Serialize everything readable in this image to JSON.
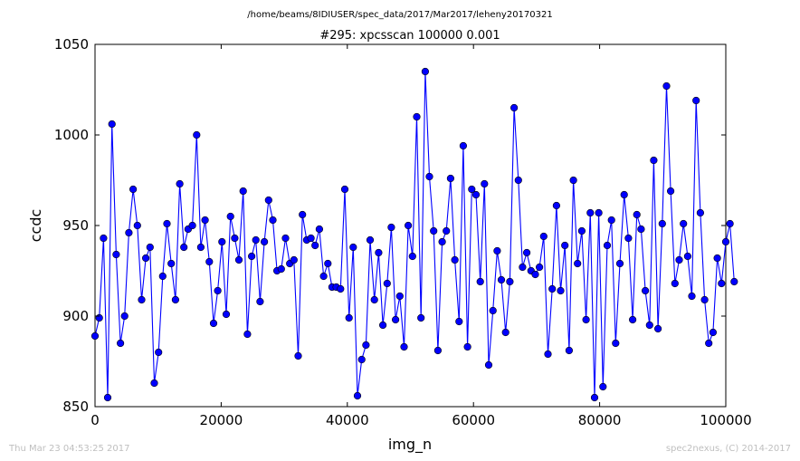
{
  "figure": {
    "suptitle": "/home/beams/8IDIUSER/spec_data/2017/Mar2017/leheny20170321",
    "footer_left": "Thu Mar 23 04:53:25 2017",
    "footer_right": "spec2nexus, (C) 2014-2017"
  },
  "chart_data": {
    "type": "line",
    "title": "#295: xpcsscan 100000 0.001",
    "xlabel": "img_n",
    "ylabel": "ccdc",
    "xlim": [
      0,
      100000
    ],
    "ylim": [
      850,
      1050
    ],
    "xticks": [
      0,
      20000,
      40000,
      60000,
      80000,
      100000
    ],
    "xtick_labels": [
      "0",
      "20000",
      "40000",
      "60000",
      "80000",
      "100000"
    ],
    "yticks": [
      850,
      900,
      950,
      1000,
      1050
    ],
    "ytick_labels": [
      "850",
      "900",
      "950",
      "1000",
      "1050"
    ],
    "grid": false,
    "line_color": "#0000ff",
    "marker_color": "#0000ff",
    "marker": "circle",
    "series": [
      {
        "x_start": 0,
        "x_step": 671.1,
        "values": [
          889,
          899,
          943,
          855,
          1006,
          934,
          885,
          900,
          946,
          970,
          950,
          909,
          932,
          938,
          863,
          880,
          922,
          951,
          929,
          909,
          973,
          938,
          948,
          950,
          1000,
          938,
          953,
          930,
          896,
          914,
          941,
          901,
          955,
          943,
          931,
          969,
          890,
          933,
          942,
          908,
          941,
          964,
          953,
          925,
          926,
          943,
          929,
          931,
          878,
          956,
          942,
          943,
          939,
          948,
          922,
          929,
          916,
          916,
          915,
          970,
          899,
          938,
          856,
          876,
          884,
          942,
          909,
          935,
          895,
          918,
          949,
          898,
          911,
          883,
          950,
          933,
          1010,
          899,
          1035,
          977,
          947,
          881,
          941,
          947,
          976,
          931,
          897,
          994,
          883,
          970,
          967,
          919,
          973,
          873,
          903,
          936,
          920,
          891,
          919,
          1015,
          975,
          927,
          935,
          925,
          923,
          927,
          944,
          879,
          915,
          961,
          914,
          939,
          881,
          975,
          929,
          947,
          898,
          957,
          855,
          957,
          861,
          939,
          953,
          885,
          929,
          967,
          943,
          898,
          956,
          948,
          914,
          895,
          986,
          893,
          951,
          1027,
          969,
          918,
          931,
          951,
          933,
          911,
          1019,
          957,
          909,
          885,
          891,
          932,
          918,
          941,
          951,
          919
        ]
      }
    ]
  }
}
